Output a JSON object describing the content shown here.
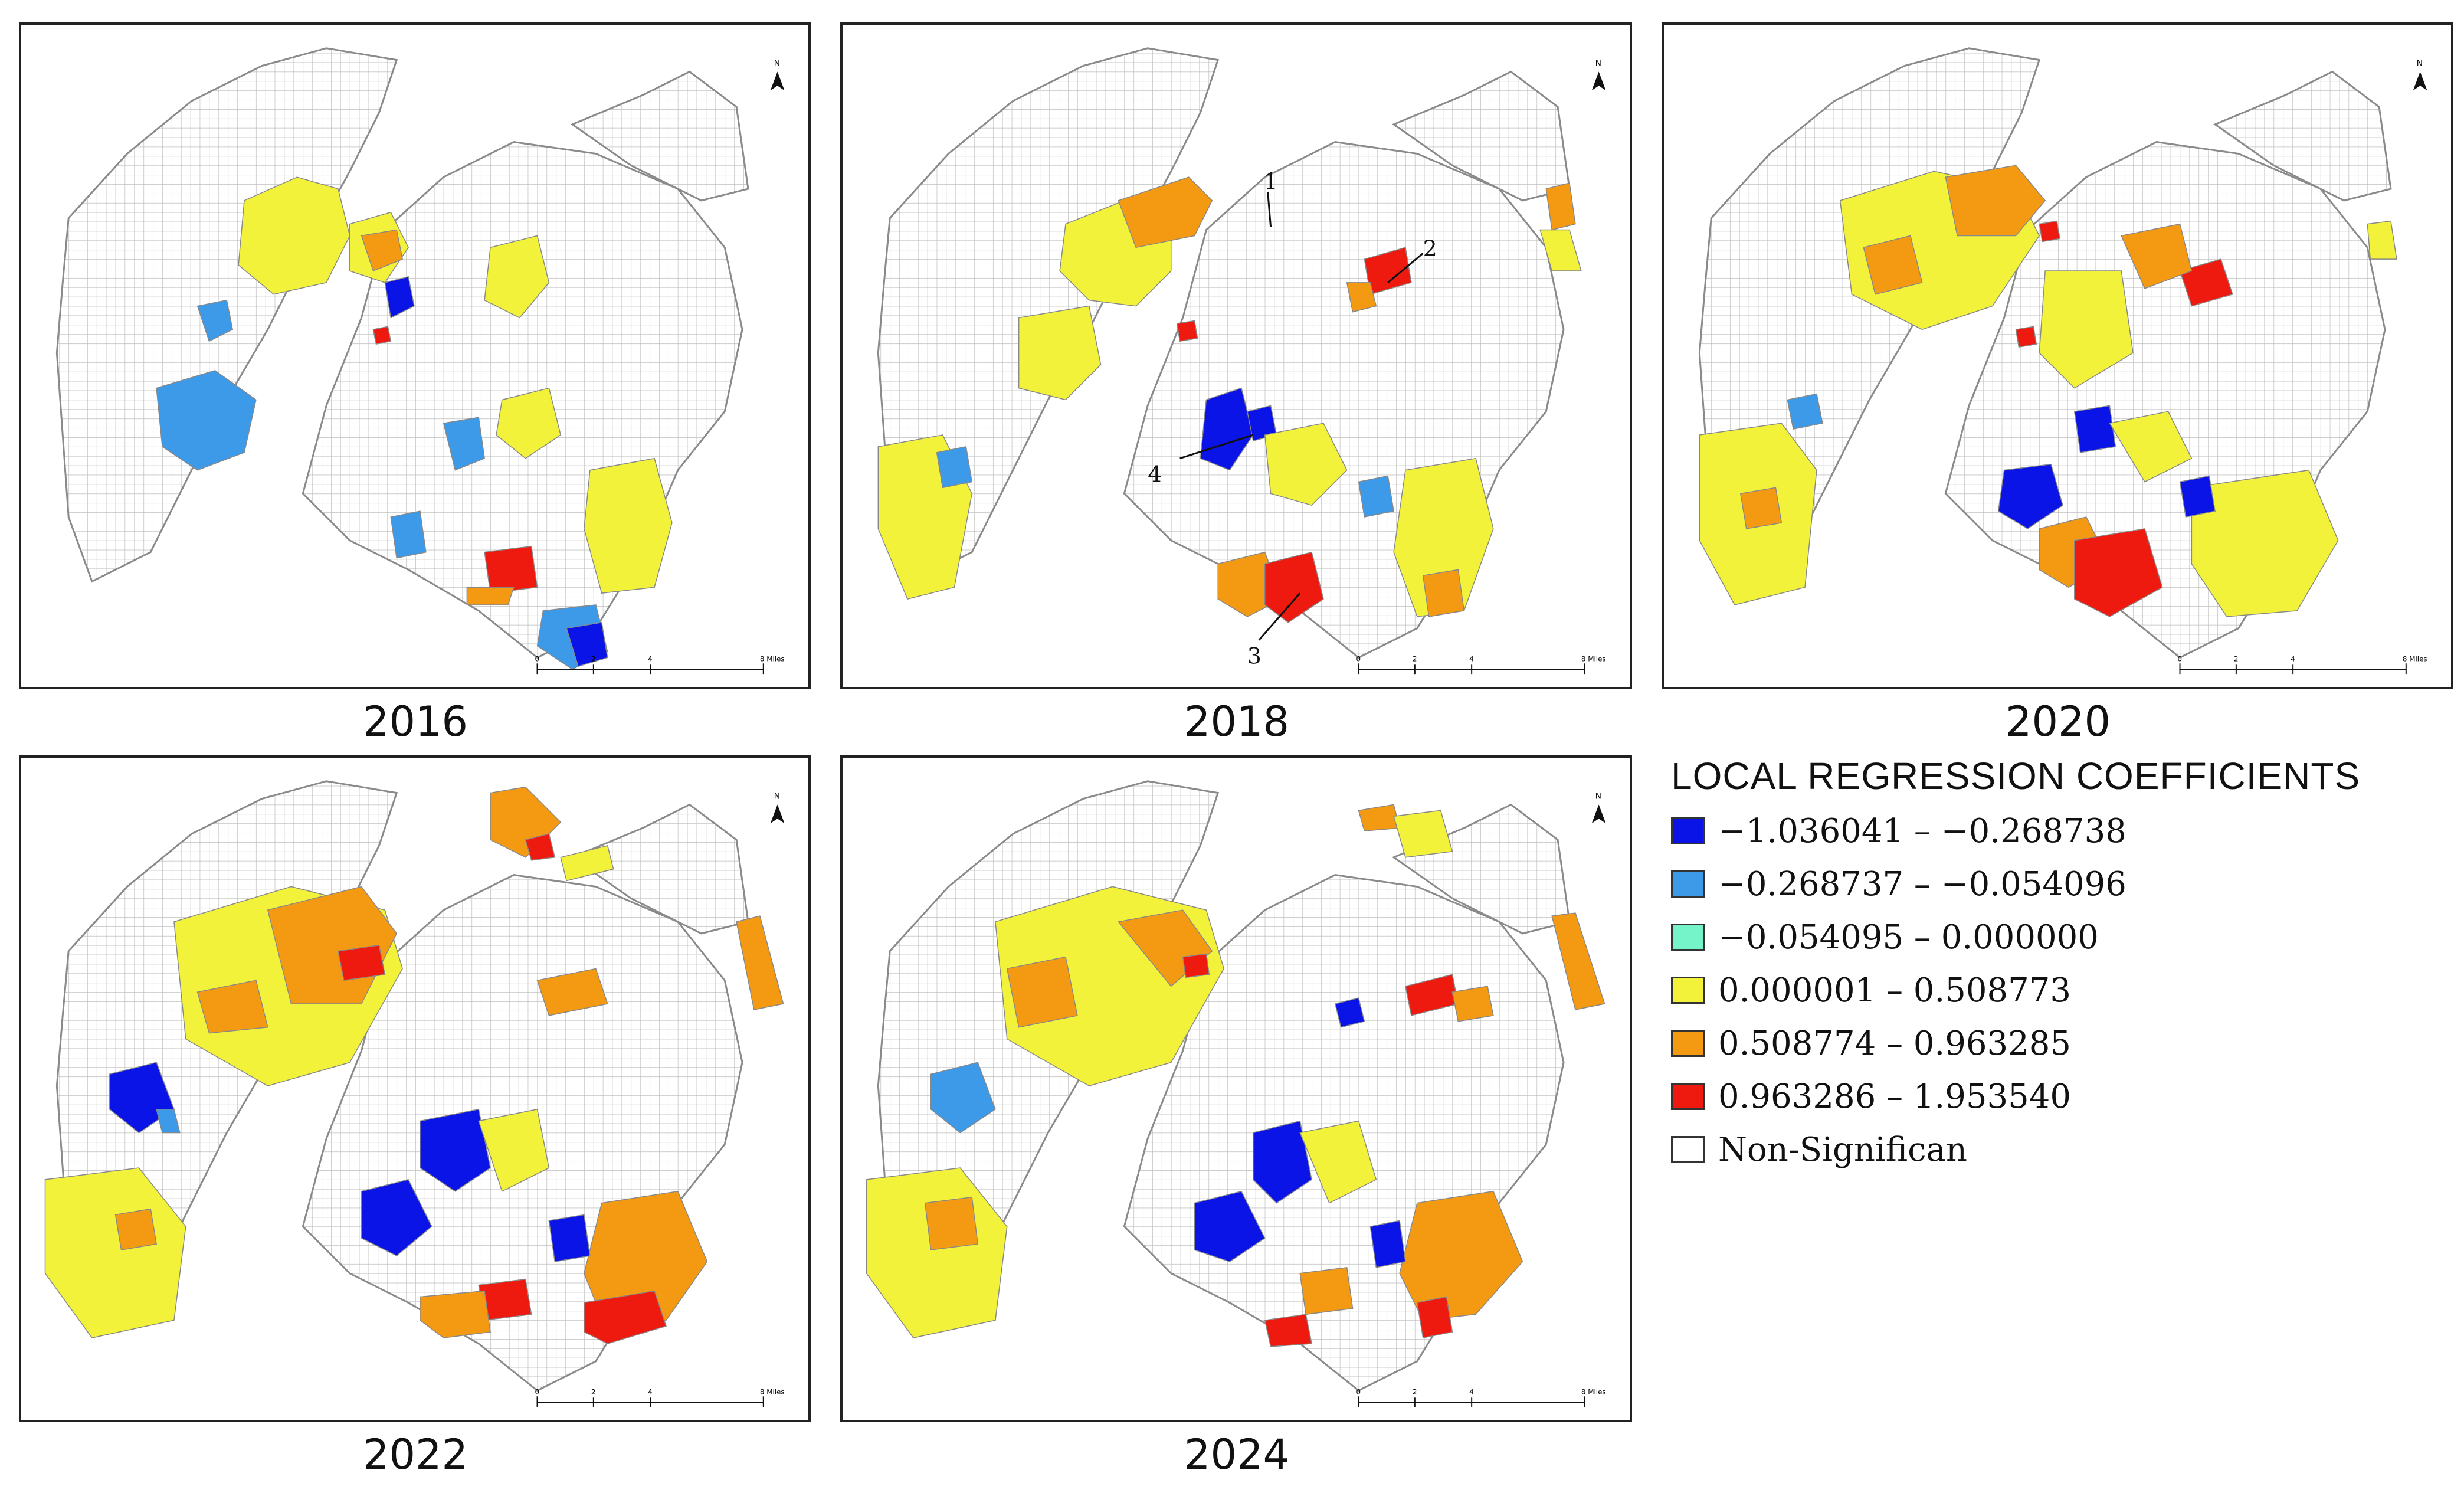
{
  "colors": {
    "class1": "#0a14e6",
    "class2": "#3d9ae8",
    "class3": "#74f4c8",
    "class4": "#f2f23a",
    "class5": "#f49a12",
    "class6": "#ee1a10",
    "nonsig": "#ffffff"
  },
  "panels": [
    {
      "year": "2016"
    },
    {
      "year": "2018"
    },
    {
      "year": "2020"
    },
    {
      "year": "2022"
    },
    {
      "year": "2024"
    }
  ],
  "north_label": "N",
  "scale_bar": {
    "ticks": [
      "0",
      "2",
      "4"
    ],
    "end_label": "8 Miles"
  },
  "annotations_2018": [
    "1",
    "2",
    "3",
    "4"
  ],
  "legend": {
    "title": "LOCAL REGRESSION COEFFICIENTS",
    "items": [
      {
        "label": "−1.036041 – −0.268738",
        "color": "#0a14e6"
      },
      {
        "label": "−0.268737 – −0.054096",
        "color": "#3d9ae8"
      },
      {
        "label": "−0.054095 – 0.000000",
        "color": "#74f4c8"
      },
      {
        "label": "0.000001 – 0.508773",
        "color": "#f2f23a"
      },
      {
        "label": "0.508774 – 0.963285",
        "color": "#f49a12"
      },
      {
        "label": "0.963286 – 1.953540",
        "color": "#ee1a10"
      },
      {
        "label": "Non-Significan",
        "color": "#ffffff"
      }
    ]
  }
}
